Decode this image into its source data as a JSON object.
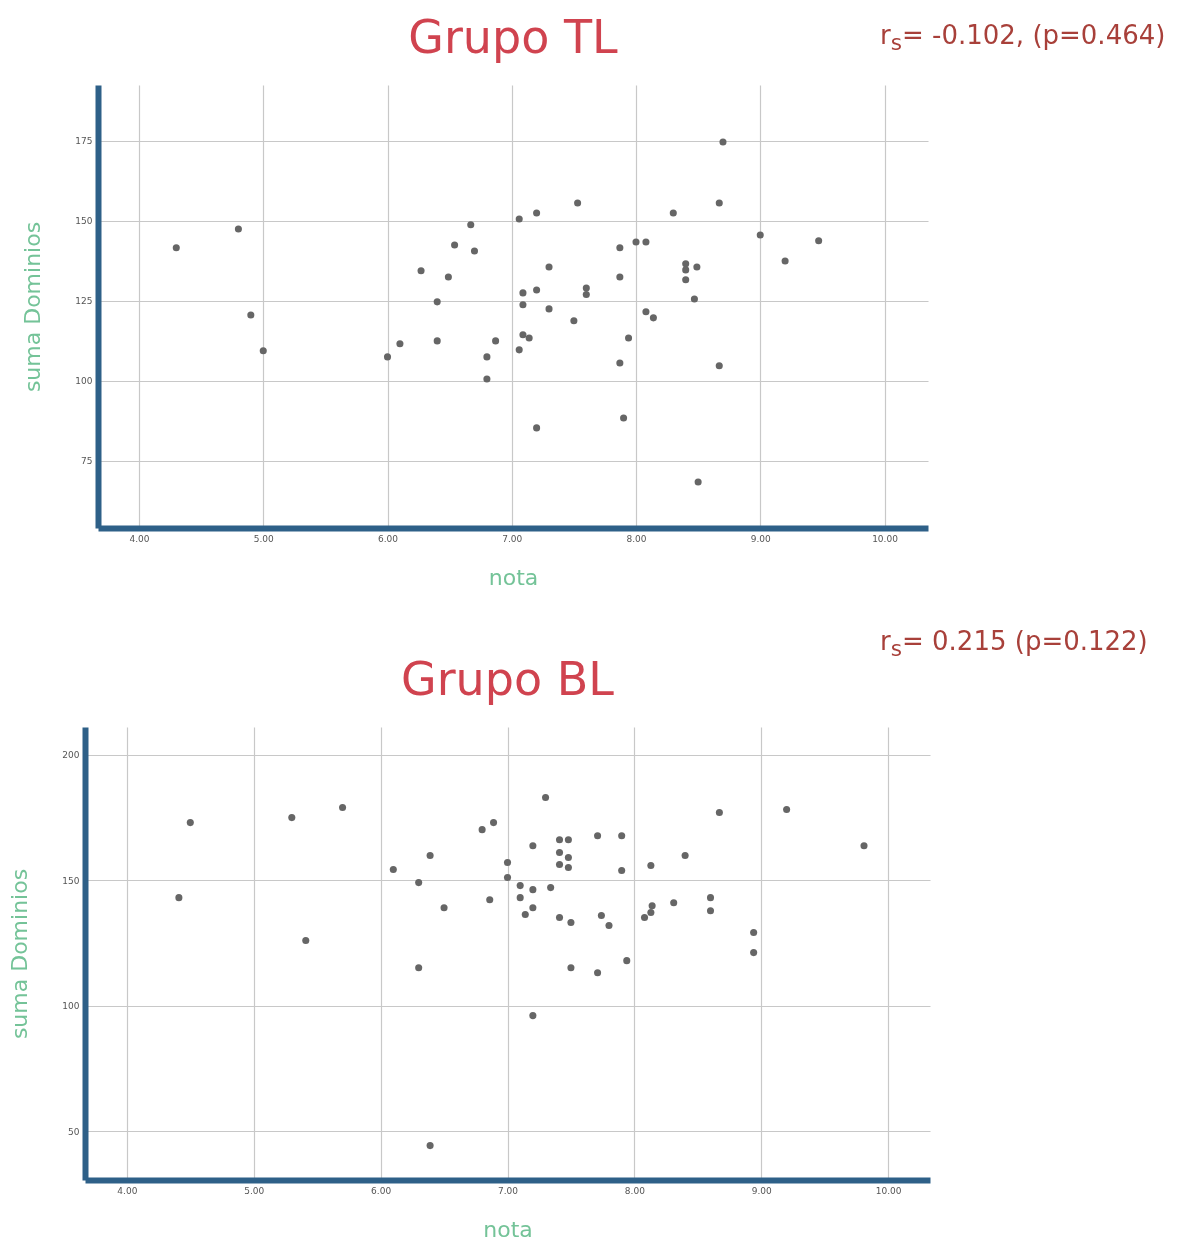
{
  "chart_data": [
    {
      "type": "scatter",
      "title": "Grupo TL",
      "xlabel": "nota",
      "ylabel": "suma Dominios",
      "color": "#666666",
      "marker": "circle",
      "grid": true,
      "xlim": [
        3.67,
        10.35
      ],
      "ylim": [
        54,
        192.5
      ],
      "xticks": [
        {
          "value": 4,
          "label": "4.00"
        },
        {
          "value": 5,
          "label": "5.00"
        },
        {
          "value": 6,
          "label": "6.00"
        },
        {
          "value": 7,
          "label": "7.00"
        },
        {
          "value": 8,
          "label": "8.00"
        },
        {
          "value": 9,
          "label": "9.00"
        },
        {
          "value": 10,
          "label": "10.00"
        }
      ],
      "yticks": [
        75,
        100,
        125,
        150,
        175
      ],
      "annotations": [
        "r$_{s}$= -0.102, (p=0.464)"
      ],
      "x": [
        4.3,
        4.8,
        4.9,
        5.0,
        6.0,
        6.1,
        6.27,
        6.4,
        6.4,
        6.49,
        6.54,
        6.67,
        6.7,
        6.8,
        6.8,
        6.87,
        7.06,
        7.06,
        7.09,
        7.09,
        7.09,
        7.14,
        7.2,
        7.2,
        7.2,
        7.3,
        7.3,
        7.5,
        7.53,
        7.6,
        7.6,
        7.87,
        7.87,
        7.87,
        7.9,
        7.94,
        8.0,
        8.08,
        8.08,
        8.14,
        8.3,
        8.4,
        8.4,
        8.4,
        8.49,
        8.47,
        8.5,
        8.67,
        8.67,
        8.7,
        9.0,
        9.2,
        9.47
      ],
      "values": [
        141.6,
        147.5,
        120.6,
        109.4,
        107.5,
        111.6,
        134.4,
        124.7,
        112.5,
        132.5,
        142.5,
        148.8,
        140.6,
        107.5,
        100.6,
        112.5,
        150.6,
        109.7,
        127.5,
        123.8,
        114.4,
        113.4,
        152.5,
        128.4,
        85.3,
        135.6,
        122.5,
        118.8,
        155.6,
        129.0,
        127.0,
        141.6,
        132.5,
        105.6,
        88.4,
        113.4,
        143.4,
        143.4,
        121.6,
        119.7,
        152.5,
        136.6,
        134.7,
        131.6,
        135.6,
        125.6,
        68.4,
        155.6,
        104.7,
        174.7,
        145.6,
        137.5,
        143.8
      ]
    },
    {
      "type": "scatter",
      "title": "Grupo BL",
      "xlabel": "nota",
      "ylabel": "suma Dominios",
      "color": "#666666",
      "marker": "circle",
      "grid": true,
      "xlim": [
        3.67,
        10.33
      ],
      "ylim": [
        30.5,
        211
      ],
      "xticks": [
        {
          "value": 4,
          "label": "4.00"
        },
        {
          "value": 5,
          "label": "5.00"
        },
        {
          "value": 6,
          "label": "6.00"
        },
        {
          "value": 7,
          "label": "7.00"
        },
        {
          "value": 8,
          "label": "8.00"
        },
        {
          "value": 9,
          "label": "9.00"
        },
        {
          "value": 10,
          "label": "10.00"
        }
      ],
      "yticks": [
        50,
        100,
        150,
        200
      ],
      "annotations": [
        "r$_{s}$= 0.215 (p=0.122)"
      ],
      "x": [
        4.41,
        4.5,
        5.3,
        5.41,
        5.7,
        6.1,
        6.3,
        6.3,
        6.39,
        6.39,
        6.5,
        6.8,
        6.86,
        6.89,
        7.0,
        7.0,
        7.1,
        7.1,
        7.14,
        7.2,
        7.2,
        7.2,
        7.2,
        7.3,
        7.34,
        7.41,
        7.41,
        7.41,
        7.41,
        7.48,
        7.48,
        7.48,
        7.5,
        7.5,
        7.71,
        7.71,
        7.74,
        7.8,
        7.9,
        7.9,
        7.94,
        8.08,
        8.13,
        8.14,
        8.13,
        8.31,
        8.4,
        8.6,
        8.6,
        8.67,
        8.94,
        8.94,
        9.2,
        9.81
      ],
      "values": [
        143.0,
        172.9,
        174.9,
        125.9,
        178.9,
        154.2,
        149.0,
        115.1,
        159.8,
        44.2,
        139.0,
        170.1,
        142.2,
        172.9,
        157.0,
        151.0,
        147.8,
        143.0,
        136.3,
        163.7,
        146.2,
        139.0,
        96.0,
        182.9,
        147.0,
        166.1,
        161.0,
        156.2,
        135.1,
        166.1,
        159.0,
        155.0,
        133.1,
        115.1,
        167.7,
        113.1,
        135.9,
        131.9,
        167.7,
        153.8,
        117.9,
        135.1,
        155.8,
        139.8,
        137.1,
        141.0,
        159.8,
        143.0,
        137.8,
        176.9,
        129.1,
        121.1,
        178.1,
        163.7
      ]
    }
  ]
}
